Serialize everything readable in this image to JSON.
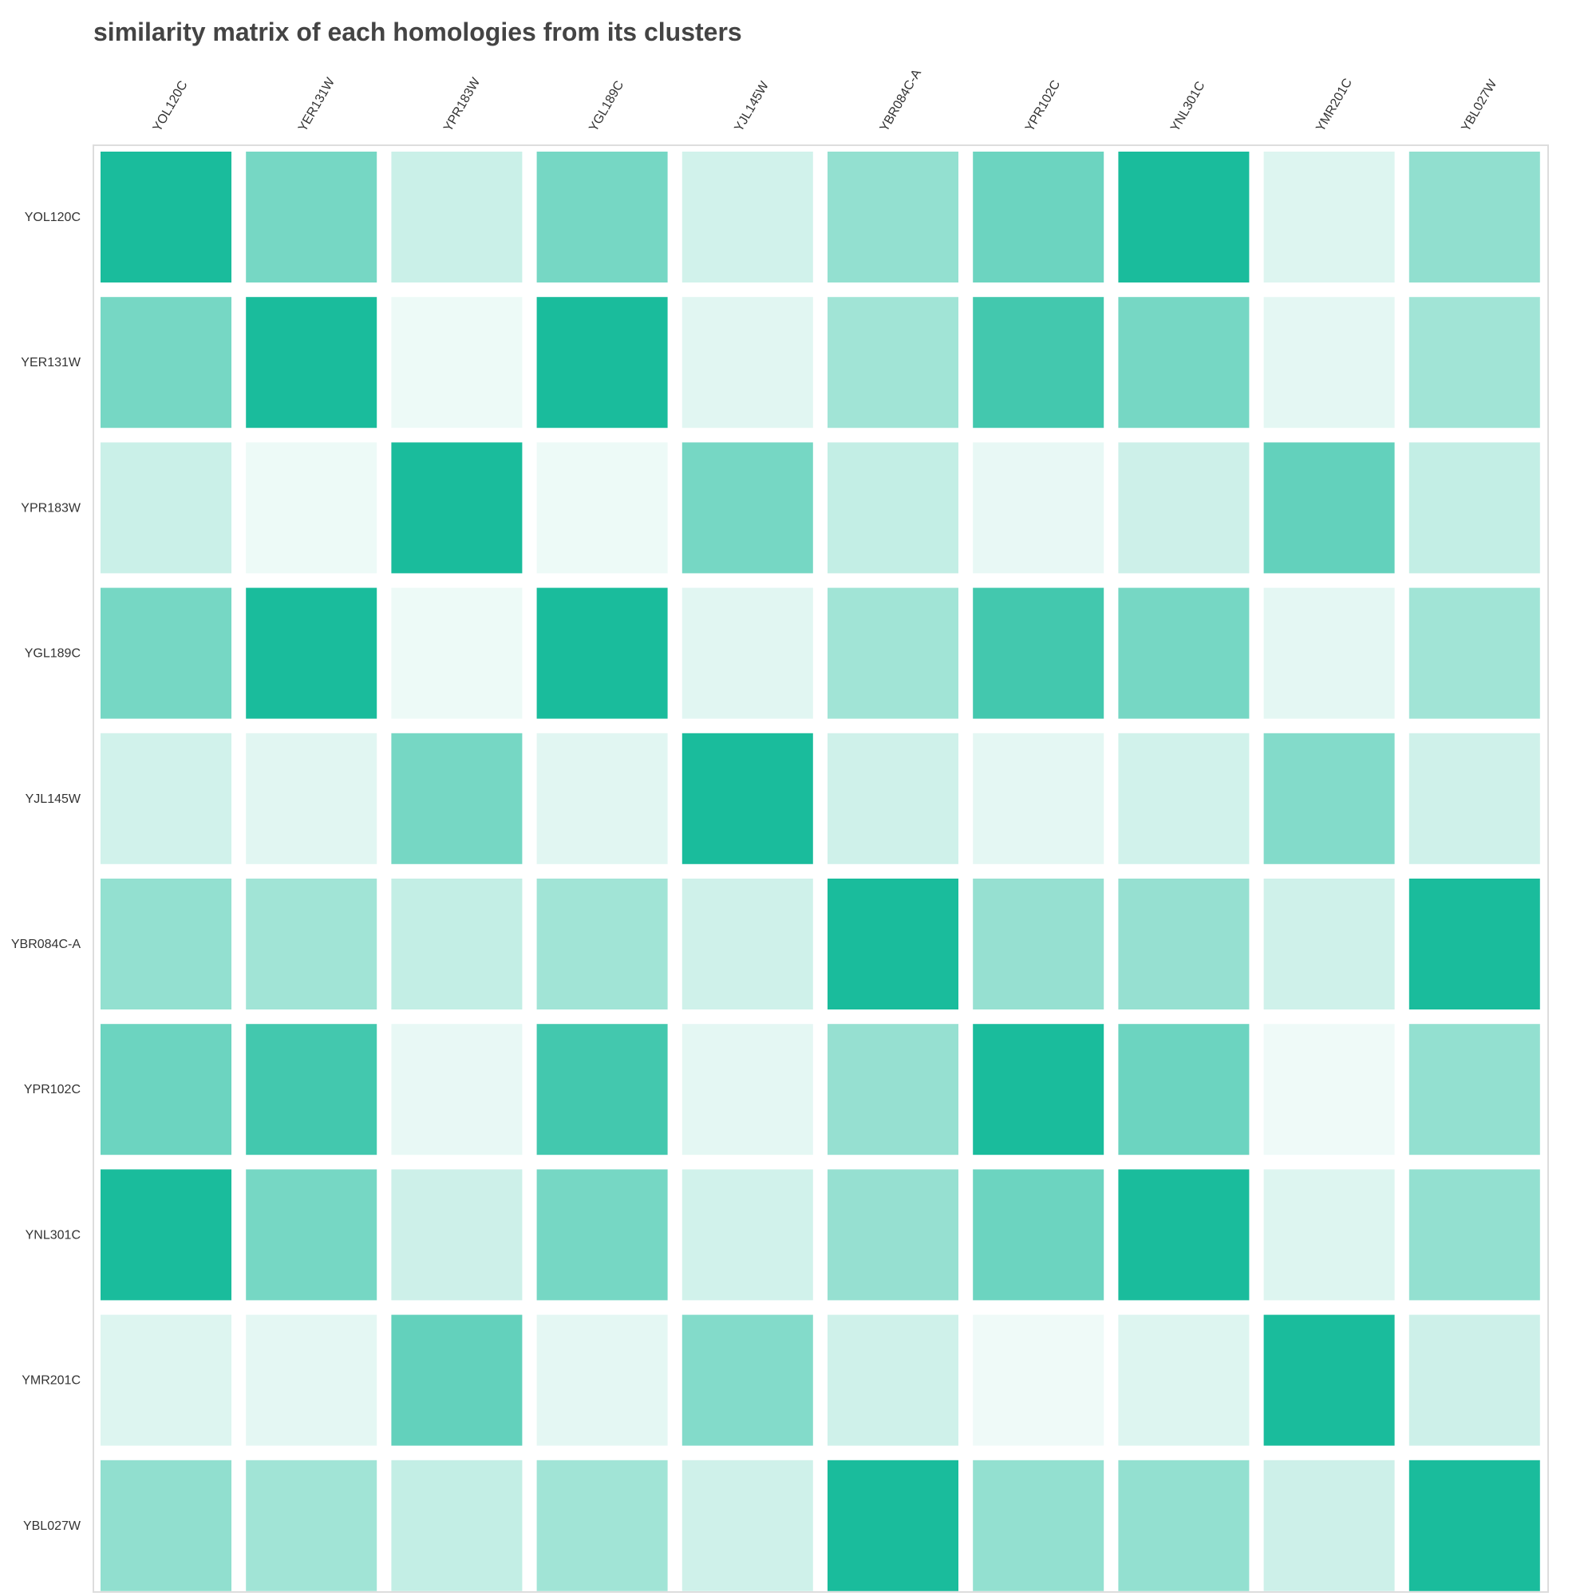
{
  "chart_data": {
    "type": "heatmap",
    "title": "similarity matrix of each homologies from its clusters",
    "x_labels": [
      "YOL120C",
      "YER131W",
      "YPR183W",
      "YGL189C",
      "YJL145W",
      "YBR084C-A",
      "YPR102C",
      "YNL301C",
      "YMR201C",
      "YBL027W"
    ],
    "y_labels": [
      "YOL120C",
      "YER131W",
      "YPR183W",
      "YGL189C",
      "YJL145W",
      "YBR084C-A",
      "YPR102C",
      "YNL301C",
      "YMR201C",
      "YBL027W"
    ],
    "values": [
      [
        1.0,
        0.6,
        0.23,
        0.6,
        0.2,
        0.47,
        0.64,
        1.0,
        0.15,
        0.48
      ],
      [
        0.6,
        1.0,
        0.08,
        1.0,
        0.13,
        0.41,
        0.82,
        0.6,
        0.12,
        0.41
      ],
      [
        0.23,
        0.08,
        1.0,
        0.08,
        0.6,
        0.26,
        0.1,
        0.22,
        0.68,
        0.26
      ],
      [
        0.6,
        1.0,
        0.08,
        1.0,
        0.13,
        0.41,
        0.82,
        0.6,
        0.12,
        0.41
      ],
      [
        0.2,
        0.13,
        0.6,
        0.13,
        1.0,
        0.21,
        0.12,
        0.2,
        0.54,
        0.21
      ],
      [
        0.47,
        0.41,
        0.26,
        0.41,
        0.21,
        1.0,
        0.46,
        0.46,
        0.21,
        1.0
      ],
      [
        0.64,
        0.82,
        0.1,
        0.82,
        0.12,
        0.46,
        1.0,
        0.64,
        0.07,
        0.47
      ],
      [
        1.0,
        0.6,
        0.22,
        0.6,
        0.2,
        0.46,
        0.64,
        1.0,
        0.15,
        0.47
      ],
      [
        0.15,
        0.12,
        0.68,
        0.12,
        0.54,
        0.21,
        0.07,
        0.15,
        1.0,
        0.22
      ],
      [
        0.48,
        0.41,
        0.26,
        0.41,
        0.21,
        1.0,
        0.47,
        0.47,
        0.22,
        1.0
      ]
    ],
    "colors": {
      "low": "#ffffff",
      "high": "#1ABC9C"
    },
    "legend": "none",
    "grid": false
  }
}
